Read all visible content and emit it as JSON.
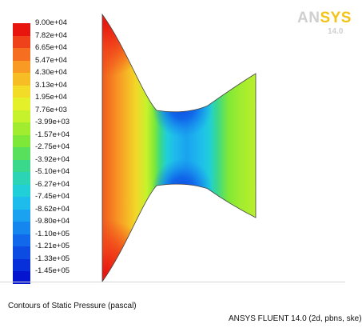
{
  "colorbar": {
    "levels": [
      {
        "label": "9.00e+04",
        "color": "#e8150f"
      },
      {
        "label": "7.82e+04",
        "color": "#f0421a"
      },
      {
        "label": "6.65e+04",
        "color": "#f66f21"
      },
      {
        "label": "5.47e+04",
        "color": "#f89a24"
      },
      {
        "label": "4.30e+04",
        "color": "#f7bd25"
      },
      {
        "label": "3.13e+04",
        "color": "#f2dc27"
      },
      {
        "label": "1.95e+04",
        "color": "#e3f02a"
      },
      {
        "label": "7.76e+03",
        "color": "#c6f22c"
      },
      {
        "label": "-3.99e+03",
        "color": "#a1ec2f"
      },
      {
        "label": "-1.57e+04",
        "color": "#7ee838"
      },
      {
        "label": "-2.75e+04",
        "color": "#58e05c"
      },
      {
        "label": "-3.92e+04",
        "color": "#3ad88b"
      },
      {
        "label": "-5.10e+04",
        "color": "#2ad4b4"
      },
      {
        "label": "-6.27e+04",
        "color": "#20cfd8"
      },
      {
        "label": "-7.45e+04",
        "color": "#1ebcec"
      },
      {
        "label": "-8.62e+04",
        "color": "#1aa2f0"
      },
      {
        "label": "-9.80e+04",
        "color": "#1686ef"
      },
      {
        "label": "-1.10e+05",
        "color": "#1168ea"
      },
      {
        "label": "-1.21e+05",
        "color": "#0c4ce2"
      },
      {
        "label": "-1.33e+05",
        "color": "#0830da"
      },
      {
        "label": "-1.45e+05",
        "color": "#0414cf"
      }
    ]
  },
  "logo": {
    "prefix": "AN",
    "highlight": "SYS",
    "version": "14.0"
  },
  "caption": "Contours of Static Pressure (pascal)",
  "solver_info": "ANSYS FLUENT 14.0 (2d, pbns, ske)"
}
